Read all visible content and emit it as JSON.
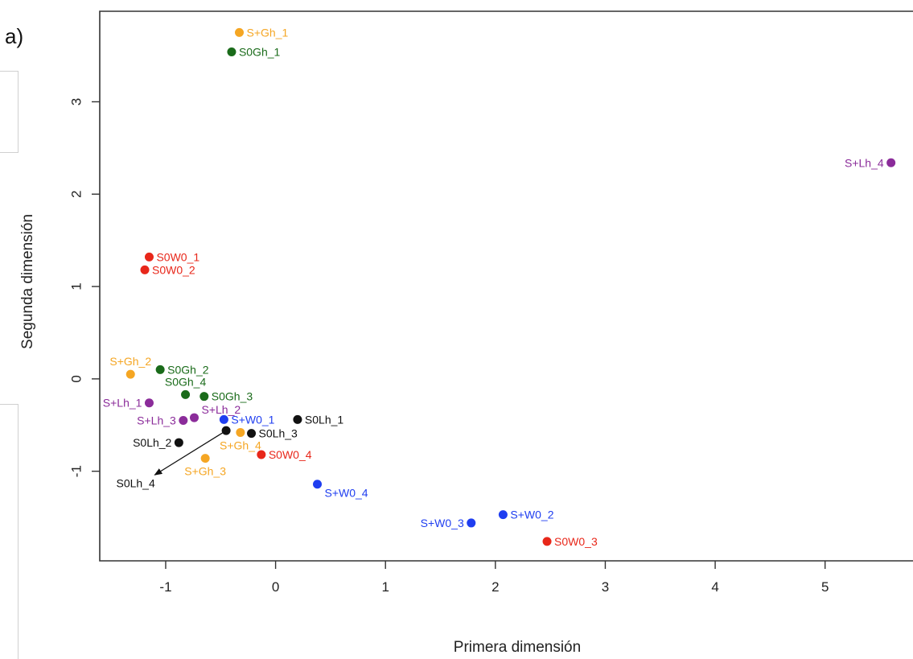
{
  "panel_label": "a)",
  "chart_data": {
    "type": "scatter",
    "xlabel": "Primera dimensión",
    "ylabel": "Segunda dimensión",
    "xlim": [
      -1.6,
      5.8
    ],
    "ylim": [
      -1.97,
      3.98
    ],
    "xticks": [
      -1,
      0,
      1,
      2,
      3,
      4,
      5
    ],
    "yticks": [
      -1,
      0,
      1,
      2,
      3
    ],
    "grid": false,
    "points": [
      {
        "label": "S+Gh_1",
        "x": -0.33,
        "y": 3.75,
        "color": "#f5a623",
        "label_pos": "right"
      },
      {
        "label": "S0Gh_1",
        "x": -0.4,
        "y": 3.54,
        "color": "#1a6b1a",
        "label_pos": "right"
      },
      {
        "label": "S+Lh_4",
        "x": 5.6,
        "y": 2.34,
        "color": "#8b2c9a",
        "label_pos": "left"
      },
      {
        "label": "S0W0_1",
        "x": -1.15,
        "y": 1.32,
        "color": "#e8271a",
        "label_pos": "right"
      },
      {
        "label": "S0W0_2",
        "x": -1.19,
        "y": 1.18,
        "color": "#e8271a",
        "label_pos": "right"
      },
      {
        "label": "S+Gh_2",
        "x": -1.32,
        "y": 0.05,
        "color": "#f5a623",
        "label_pos": "above"
      },
      {
        "label": "S0Gh_2",
        "x": -1.05,
        "y": 0.1,
        "color": "#1a6b1a",
        "label_pos": "right"
      },
      {
        "label": "S0Gh_4",
        "x": -0.82,
        "y": -0.17,
        "color": "#1a6b1a",
        "label_pos": "above"
      },
      {
        "label": "S0Gh_3",
        "x": -0.65,
        "y": -0.19,
        "color": "#1a6b1a",
        "label_pos": "right"
      },
      {
        "label": "S+Lh_1",
        "x": -1.15,
        "y": -0.26,
        "color": "#8b2c9a",
        "label_pos": "left"
      },
      {
        "label": "S+Lh_2",
        "x": -0.74,
        "y": -0.42,
        "color": "#8b2c9a",
        "label_pos": "right-up"
      },
      {
        "label": "S+Lh_3",
        "x": -0.84,
        "y": -0.45,
        "color": "#8b2c9a",
        "label_pos": "left"
      },
      {
        "label": "S+W0_1",
        "x": -0.47,
        "y": -0.44,
        "color": "#1f3ef0",
        "label_pos": "right"
      },
      {
        "label": "S0Lh_1",
        "x": 0.2,
        "y": -0.44,
        "color": "#111111",
        "label_pos": "right"
      },
      {
        "label": "S0Lh_3",
        "x": -0.22,
        "y": -0.59,
        "color": "#111111",
        "label_pos": "right"
      },
      {
        "label": "S+Gh_4",
        "x": -0.32,
        "y": -0.58,
        "color": "#f5a623",
        "label_pos": "below"
      },
      {
        "label": "S0Lh_2",
        "x": -0.88,
        "y": -0.69,
        "color": "#111111",
        "label_pos": "left"
      },
      {
        "label": "S0Lh_4",
        "x": -0.45,
        "y": -0.56,
        "color": "#111111",
        "label_pos": "none"
      },
      {
        "label": "S0W0_4",
        "x": -0.13,
        "y": -0.82,
        "color": "#e8271a",
        "label_pos": "right"
      },
      {
        "label": "S+Gh_3",
        "x": -0.64,
        "y": -0.86,
        "color": "#f5a623",
        "label_pos": "below"
      },
      {
        "label": "S+W0_4",
        "x": 0.38,
        "y": -1.14,
        "color": "#1f3ef0",
        "label_pos": "right-down"
      },
      {
        "label": "S+W0_2",
        "x": 2.07,
        "y": -1.47,
        "color": "#1f3ef0",
        "label_pos": "right"
      },
      {
        "label": "S+W0_3",
        "x": 1.78,
        "y": -1.56,
        "color": "#1f3ef0",
        "label_pos": "left"
      },
      {
        "label": "S0W0_3",
        "x": 2.47,
        "y": -1.76,
        "color": "#e8271a",
        "label_pos": "right"
      }
    ],
    "annotations": [
      {
        "text": "S0Lh_4",
        "x": -1.45,
        "y": -1.13,
        "color": "#111111"
      }
    ],
    "arrows": [
      {
        "from": [
          -0.45,
          -0.56
        ],
        "to": [
          -1.1,
          -1.04
        ]
      }
    ]
  }
}
